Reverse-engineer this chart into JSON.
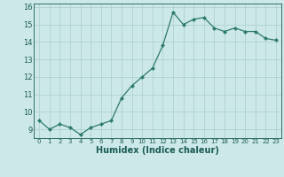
{
  "x": [
    0,
    1,
    2,
    3,
    4,
    5,
    6,
    7,
    8,
    9,
    10,
    11,
    12,
    13,
    14,
    15,
    16,
    17,
    18,
    19,
    20,
    21,
    22,
    23
  ],
  "y": [
    9.5,
    9.0,
    9.3,
    9.1,
    8.7,
    9.1,
    9.3,
    9.5,
    10.8,
    11.5,
    12.0,
    12.5,
    13.8,
    15.7,
    15.0,
    15.3,
    15.4,
    14.8,
    14.6,
    14.8,
    14.6,
    14.6,
    14.2,
    14.1
  ],
  "xlabel": "Humidex (Indice chaleur)",
  "xlim": [
    -0.5,
    23.5
  ],
  "ylim": [
    8.5,
    16.2
  ],
  "yticks": [
    9,
    10,
    11,
    12,
    13,
    14,
    15,
    16
  ],
  "xticks": [
    0,
    1,
    2,
    3,
    4,
    5,
    6,
    7,
    8,
    9,
    10,
    11,
    12,
    13,
    14,
    15,
    16,
    17,
    18,
    19,
    20,
    21,
    22,
    23
  ],
  "line_color": "#2d7a6e",
  "marker_color": "#2d7a6e",
  "bg_color": "#cde8e8",
  "grid_color": "#aacece",
  "label_color": "#1a5c55",
  "tick_color": "#1a5c55",
  "fig_width": 3.2,
  "fig_height": 2.0,
  "dpi": 100
}
